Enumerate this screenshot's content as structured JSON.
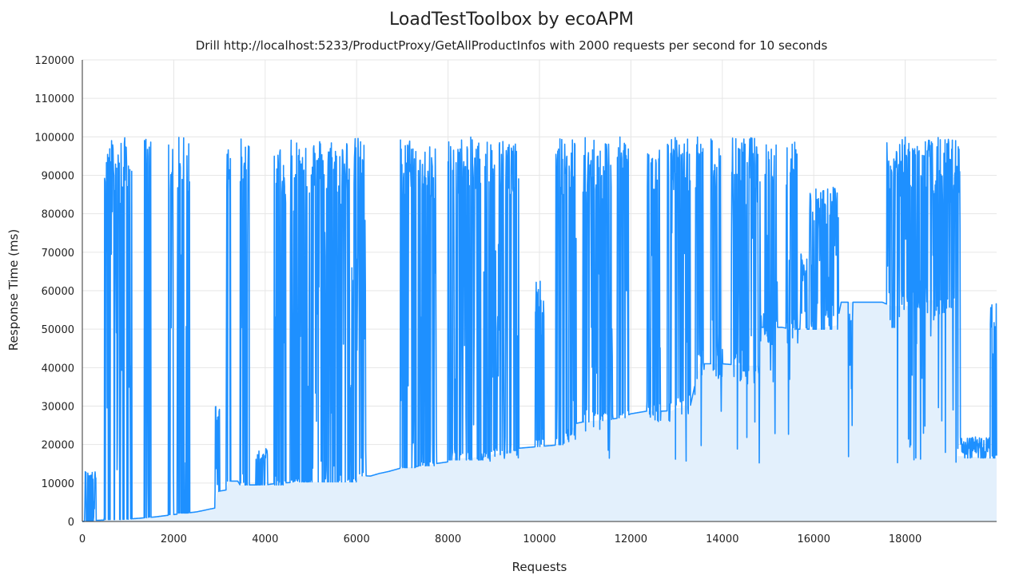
{
  "colors": {
    "series_line": "#1e90ff",
    "baseline_fill": "#e3f0fc",
    "grid": "#e6e6e6",
    "text": "#222222"
  },
  "chart_data": {
    "type": "line",
    "title": "LoadTestToolbox by ecoAPM",
    "subtitle": "Drill http://localhost:5233/ProductProxy/GetAllProductInfos with 2000 requests per second for 10 seconds",
    "xlabel": "Requests",
    "ylabel": "Response Time (ms)",
    "xlim": [
      0,
      20000
    ],
    "ylim": [
      0,
      120000
    ],
    "xticks": [
      0,
      2000,
      4000,
      6000,
      8000,
      10000,
      12000,
      14000,
      16000,
      18000
    ],
    "yticks": [
      0,
      10000,
      20000,
      30000,
      40000,
      50000,
      60000,
      70000,
      80000,
      90000,
      100000,
      110000,
      120000
    ],
    "grid": true,
    "legend": "none",
    "baseline": [
      [
        0,
        0
      ],
      [
        100,
        100
      ],
      [
        300,
        300
      ],
      [
        800,
        500
      ],
      [
        1200,
        800
      ],
      [
        1600,
        1200
      ],
      [
        2000,
        1800
      ],
      [
        2500,
        2500
      ],
      [
        2900,
        3500
      ],
      [
        2950,
        7800
      ],
      [
        3050,
        8000
      ],
      [
        3150,
        8200
      ],
      [
        3200,
        10500
      ],
      [
        3400,
        10500
      ],
      [
        3450,
        9500
      ],
      [
        4000,
        9500
      ],
      [
        4300,
        10000
      ],
      [
        4700,
        10200
      ],
      [
        5000,
        10300
      ],
      [
        5500,
        10300
      ],
      [
        6000,
        10500
      ],
      [
        6050,
        12000
      ],
      [
        6300,
        11800
      ],
      [
        6500,
        12500
      ],
      [
        6700,
        13000
      ],
      [
        7000,
        14000
      ],
      [
        7500,
        14500
      ],
      [
        7700,
        15000
      ],
      [
        8000,
        15500
      ],
      [
        8050,
        16500
      ],
      [
        8500,
        16500
      ],
      [
        9000,
        17500
      ],
      [
        9500,
        19000
      ],
      [
        10000,
        19500
      ],
      [
        10500,
        20000
      ],
      [
        10800,
        25500
      ],
      [
        11000,
        26000
      ],
      [
        11500,
        26500
      ],
      [
        11800,
        27000
      ],
      [
        12000,
        28000
      ],
      [
        12400,
        28800
      ],
      [
        12500,
        28600
      ],
      [
        12900,
        28800
      ],
      [
        13000,
        29500
      ],
      [
        13300,
        30000
      ],
      [
        13500,
        41000
      ],
      [
        14000,
        41000
      ],
      [
        14500,
        40500
      ],
      [
        14800,
        40500
      ],
      [
        14850,
        50500
      ],
      [
        15300,
        50500
      ],
      [
        15500,
        50000
      ],
      [
        16000,
        50000
      ],
      [
        16500,
        51000
      ],
      [
        16600,
        57000
      ],
      [
        17500,
        57000
      ],
      [
        17700,
        56000
      ],
      [
        18100,
        56000
      ],
      [
        18200,
        57500
      ],
      [
        19000,
        57500
      ],
      [
        19100,
        57500
      ],
      [
        19150,
        17000
      ],
      [
        20000,
        16500
      ]
    ],
    "spike_clusters": [
      {
        "x_start": 50,
        "x_end": 300,
        "peak": 13000,
        "floor": 0
      },
      {
        "x_start": 480,
        "x_end": 560,
        "peak": 100000,
        "floor": 500
      },
      {
        "x_start": 560,
        "x_end": 1080,
        "peak": 100000,
        "floor": 500
      },
      {
        "x_start": 1360,
        "x_end": 1500,
        "peak": 100000,
        "floor": 1000
      },
      {
        "x_start": 1880,
        "x_end": 2000,
        "peak": 100000,
        "floor": 1800
      },
      {
        "x_start": 2080,
        "x_end": 2350,
        "peak": 100000,
        "floor": 2200
      },
      {
        "x_start": 2900,
        "x_end": 3000,
        "peak": 30500,
        "floor": 7800
      },
      {
        "x_start": 3150,
        "x_end": 3250,
        "peak": 100000,
        "floor": 10500
      },
      {
        "x_start": 3450,
        "x_end": 3650,
        "peak": 100000,
        "floor": 9500
      },
      {
        "x_start": 3800,
        "x_end": 4050,
        "peak": 19000,
        "floor": 9500
      },
      {
        "x_start": 4200,
        "x_end": 4450,
        "peak": 98000,
        "floor": 9500
      },
      {
        "x_start": 4550,
        "x_end": 6000,
        "peak": 100000,
        "floor": 10300
      },
      {
        "x_start": 6000,
        "x_end": 6200,
        "peak": 100000,
        "floor": 11800
      },
      {
        "x_start": 6950,
        "x_end": 7300,
        "peak": 100000,
        "floor": 14000
      },
      {
        "x_start": 7350,
        "x_end": 7750,
        "peak": 98000,
        "floor": 14500
      },
      {
        "x_start": 8000,
        "x_end": 8800,
        "peak": 100000,
        "floor": 16000
      },
      {
        "x_start": 8800,
        "x_end": 9550,
        "peak": 100000,
        "floor": 15500
      },
      {
        "x_start": 9900,
        "x_end": 10100,
        "peak": 62500,
        "floor": 19500
      },
      {
        "x_start": 10350,
        "x_end": 10800,
        "peak": 100000,
        "floor": 20000
      },
      {
        "x_start": 10950,
        "x_end": 11600,
        "peak": 100000,
        "floor": 15000
      },
      {
        "x_start": 11700,
        "x_end": 11950,
        "peak": 100000,
        "floor": 27000
      },
      {
        "x_start": 12350,
        "x_end": 12650,
        "peak": 100000,
        "floor": 15000
      },
      {
        "x_start": 12800,
        "x_end": 13300,
        "peak": 100000,
        "floor": 15000
      },
      {
        "x_start": 13400,
        "x_end": 13600,
        "peak": 100000,
        "floor": 15000
      },
      {
        "x_start": 13750,
        "x_end": 14000,
        "peak": 100000,
        "floor": 15000
      },
      {
        "x_start": 14200,
        "x_end": 14850,
        "peak": 100000,
        "floor": 15000
      },
      {
        "x_start": 14900,
        "x_end": 15200,
        "peak": 100000,
        "floor": 15000
      },
      {
        "x_start": 15400,
        "x_end": 15650,
        "peak": 100000,
        "floor": 15000
      },
      {
        "x_start": 15700,
        "x_end": 15850,
        "peak": 72000,
        "floor": 50000
      },
      {
        "x_start": 15900,
        "x_end": 16550,
        "peak": 87000,
        "floor": 50000
      },
      {
        "x_start": 16750,
        "x_end": 16850,
        "peak": 55000,
        "floor": 15000
      },
      {
        "x_start": 17600,
        "x_end": 18250,
        "peak": 100000,
        "floor": 15000
      },
      {
        "x_start": 18250,
        "x_end": 18800,
        "peak": 100000,
        "floor": 15000
      },
      {
        "x_start": 18800,
        "x_end": 19200,
        "peak": 100000,
        "floor": 15000
      },
      {
        "x_start": 19200,
        "x_end": 19850,
        "peak": 22000,
        "floor": 16500
      },
      {
        "x_start": 19850,
        "x_end": 20000,
        "peak": 57500,
        "floor": 16500
      }
    ]
  }
}
